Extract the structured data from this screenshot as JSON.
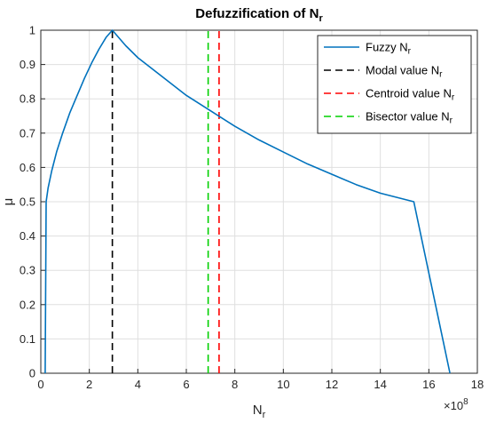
{
  "chart_data": {
    "type": "line",
    "title": "Defuzzification of N",
    "title_subscript": "r",
    "xlabel": "N",
    "xlabel_subscript": "r",
    "ylabel": "μ",
    "x_exponent_base": "×10",
    "x_exponent": "8",
    "xlim": [
      0,
      18
    ],
    "ylim": [
      0,
      1
    ],
    "xticks": [
      0,
      2,
      4,
      6,
      8,
      10,
      12,
      14,
      16,
      18
    ],
    "yticks": [
      0,
      0.1,
      0.2,
      0.3,
      0.4,
      0.5,
      0.6,
      0.7,
      0.8,
      0.9,
      1
    ],
    "ytick_labels": [
      "0",
      "0.1",
      "0.2",
      "0.3",
      "0.4",
      "0.5",
      "0.6",
      "0.7",
      "0.8",
      "0.9",
      "1"
    ],
    "grid": true,
    "legend_position": "top-right",
    "series": [
      {
        "name": "Fuzzy N",
        "name_subscript": "r",
        "style": "solid",
        "color": "#0072BD",
        "x": [
          0.18,
          0.22,
          0.3,
          0.45,
          0.65,
          0.9,
          1.2,
          1.5,
          1.8,
          2.1,
          2.4,
          2.7,
          2.95,
          3.5,
          4.0,
          5.0,
          6.0,
          7.0,
          8.0,
          9.0,
          10.0,
          11.0,
          12.0,
          13.0,
          14.0,
          15.38,
          16.87
        ],
        "y": [
          0.0,
          0.5,
          0.54,
          0.59,
          0.645,
          0.7,
          0.76,
          0.81,
          0.86,
          0.905,
          0.945,
          0.98,
          1.0,
          0.955,
          0.92,
          0.865,
          0.81,
          0.765,
          0.72,
          0.68,
          0.645,
          0.61,
          0.58,
          0.55,
          0.525,
          0.5,
          0.0
        ]
      },
      {
        "name": "Modal value N",
        "name_subscript": "r",
        "style": "dashed",
        "color": "#000000",
        "x": [
          2.95,
          2.95
        ],
        "y": [
          0,
          1
        ]
      },
      {
        "name": "Centroid value N",
        "name_subscript": "r",
        "style": "dashed",
        "color": "#FF0000",
        "x": [
          7.35,
          7.35
        ],
        "y": [
          0,
          1
        ]
      },
      {
        "name": "Bisector value N",
        "name_subscript": "r",
        "style": "dashed",
        "color": "#00D000",
        "x": [
          6.9,
          6.9
        ],
        "y": [
          0,
          1
        ]
      }
    ]
  }
}
